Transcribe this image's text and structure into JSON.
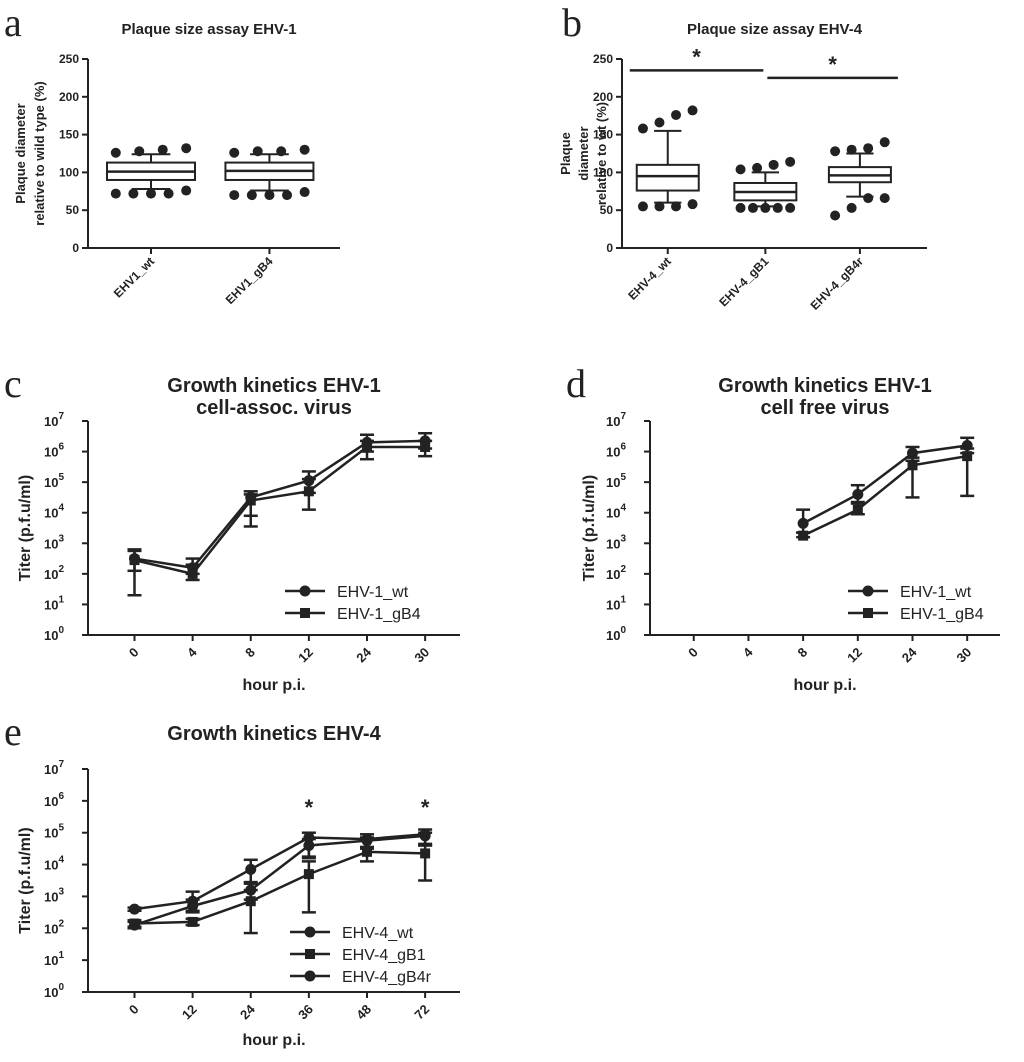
{
  "colors": {
    "ink": "#222222",
    "background": "#ffffff"
  },
  "chart_data": [
    {
      "id": "a",
      "panel_letter": "a",
      "type": "box",
      "title": "Plaque size assay EHV-1",
      "ylabel_lines": [
        "Plaque diameter",
        "relative to wild type (%)"
      ],
      "ylim": [
        0,
        250
      ],
      "yticks": [
        0,
        50,
        100,
        150,
        200,
        250
      ],
      "categories": [
        "EHV1_wt",
        "EHV1_gB4"
      ],
      "boxes": [
        {
          "q1": 90,
          "median": 101,
          "q3": 113,
          "whisker_low": 78,
          "whisker_high": 124,
          "outliers": [
            72,
            72,
            72,
            72,
            76,
            126,
            128,
            130,
            132
          ]
        },
        {
          "q1": 90,
          "median": 102,
          "q3": 113,
          "whisker_low": 76,
          "whisker_high": 124,
          "outliers": [
            70,
            70,
            70,
            70,
            74,
            126,
            128,
            128,
            130
          ]
        }
      ],
      "significance": []
    },
    {
      "id": "b",
      "panel_letter": "b",
      "type": "box",
      "title": "Plaque size assay EHV-4",
      "ylabel_lines": [
        "Plaque",
        "diameter",
        "relative to wt (%)"
      ],
      "ylim": [
        0,
        250
      ],
      "yticks": [
        0,
        50,
        100,
        150,
        200,
        250
      ],
      "categories": [
        "EHV-4_wt",
        "EHV-4_gB1",
        "EHV-4_gB4r"
      ],
      "boxes": [
        {
          "q1": 76,
          "median": 95,
          "q3": 110,
          "whisker_low": 60,
          "whisker_high": 155,
          "outliers": [
            55,
            55,
            55,
            58,
            158,
            166,
            176,
            182
          ]
        },
        {
          "q1": 63,
          "median": 74,
          "q3": 86,
          "whisker_low": 55,
          "whisker_high": 100,
          "outliers": [
            53,
            53,
            53,
            53,
            53,
            104,
            106,
            110,
            114
          ]
        },
        {
          "q1": 87,
          "median": 96,
          "q3": 107,
          "whisker_low": 68,
          "whisker_high": 125,
          "outliers": [
            43,
            53,
            66,
            66,
            128,
            130,
            132,
            140
          ]
        }
      ],
      "significance": [
        {
          "from": 0,
          "to": 1,
          "y": 235,
          "label": "*"
        },
        {
          "from": 1,
          "to": 2,
          "y": 225,
          "label": "*"
        }
      ]
    },
    {
      "id": "c",
      "panel_letter": "c",
      "type": "line",
      "title_lines": [
        "Growth kinetics EHV-1",
        "cell-assoc. virus"
      ],
      "xlabel": "hour p.i.",
      "ylabel": "Titer (p.f.u/ml)",
      "y_scale": "log",
      "ylim_exp": [
        0,
        7
      ],
      "x": [
        "0",
        "4",
        "8",
        "12",
        "24",
        "30"
      ],
      "series": [
        {
          "name": "EHV-1_wt",
          "marker": "circle",
          "log_values": [
            2.5,
            2.2,
            4.5,
            5.05,
            6.3,
            6.35
          ],
          "err_up": [
            0.3,
            0.3,
            0.2,
            0.3,
            0.25,
            0.25
          ],
          "err_down": [
            0.4,
            0.2,
            0.6,
            0.4,
            0.3,
            0.25
          ]
        },
        {
          "name": "EHV-1_gB4",
          "marker": "square",
          "log_values": [
            2.45,
            2.0,
            4.4,
            4.7,
            6.15,
            6.15
          ],
          "err_up": [
            0.3,
            0.3,
            0.2,
            0.4,
            0.2,
            0.2
          ],
          "err_down": [
            1.15,
            0.2,
            0.85,
            0.6,
            0.4,
            0.3
          ]
        }
      ]
    },
    {
      "id": "d",
      "panel_letter": "d",
      "type": "line",
      "title_lines": [
        "Growth kinetics EHV-1",
        "cell free virus"
      ],
      "xlabel": "hour p.i.",
      "ylabel": "Titer (p.f.u/ml)",
      "y_scale": "log",
      "ylim_exp": [
        0,
        7
      ],
      "x": [
        "0",
        "4",
        "8",
        "12",
        "24",
        "30"
      ],
      "series": [
        {
          "name": "EHV-1_wt",
          "marker": "circle",
          "log_values": [
            null,
            null,
            3.65,
            4.6,
            5.95,
            6.2
          ],
          "err_up": [
            0,
            0,
            0.45,
            0.3,
            0.2,
            0.25
          ],
          "err_down": [
            0,
            0,
            0.3,
            0.25,
            0.25,
            0.25
          ]
        },
        {
          "name": "EHV-1_gB4",
          "marker": "square",
          "log_values": [
            null,
            null,
            3.25,
            4.1,
            5.55,
            5.85
          ],
          "err_up": [
            0,
            0,
            0.1,
            0.2,
            0.25,
            0.25
          ],
          "err_down": [
            0,
            0,
            0.05,
            0.15,
            1.05,
            1.3
          ]
        }
      ]
    },
    {
      "id": "e",
      "panel_letter": "e",
      "type": "line",
      "title_lines": [
        "Growth kinetics EHV-4"
      ],
      "xlabel": "hour p.i.",
      "ylabel": "Titer (p.f.u/ml)",
      "y_scale": "log",
      "ylim_exp": [
        0,
        7
      ],
      "x": [
        "0",
        "12",
        "24",
        "36",
        "48",
        "72"
      ],
      "series": [
        {
          "name": "EHV-4_wt",
          "marker": "circle",
          "log_values": [
            2.6,
            2.85,
            3.85,
            4.85,
            4.8,
            4.95
          ],
          "err_up": [
            0.05,
            0.3,
            0.3,
            0.15,
            0.15,
            0.15
          ],
          "err_down": [
            0.05,
            0.3,
            0.4,
            0.6,
            0.3,
            0.3
          ]
        },
        {
          "name": "EHV-4_gB1",
          "marker": "square",
          "log_values": [
            2.15,
            2.2,
            2.85,
            3.7,
            4.4,
            4.35
          ],
          "err_up": [
            0.1,
            0.1,
            0.35,
            0.4,
            0.15,
            0.25
          ],
          "err_down": [
            0.1,
            0.1,
            1.0,
            1.2,
            0.3,
            0.85
          ]
        },
        {
          "name": "EHV-4_gB4r",
          "marker": "circle",
          "log_values": [
            2.1,
            2.7,
            3.2,
            4.6,
            4.75,
            4.9
          ],
          "err_up": [
            0.1,
            0.2,
            0.2,
            0.2,
            0.1,
            0.1
          ],
          "err_down": [
            0.1,
            0.2,
            0.3,
            0.4,
            0.2,
            0.3
          ]
        }
      ],
      "annotations": [
        {
          "x_index": 3,
          "label": "*"
        },
        {
          "x_index": 5,
          "label": "*"
        }
      ]
    }
  ]
}
